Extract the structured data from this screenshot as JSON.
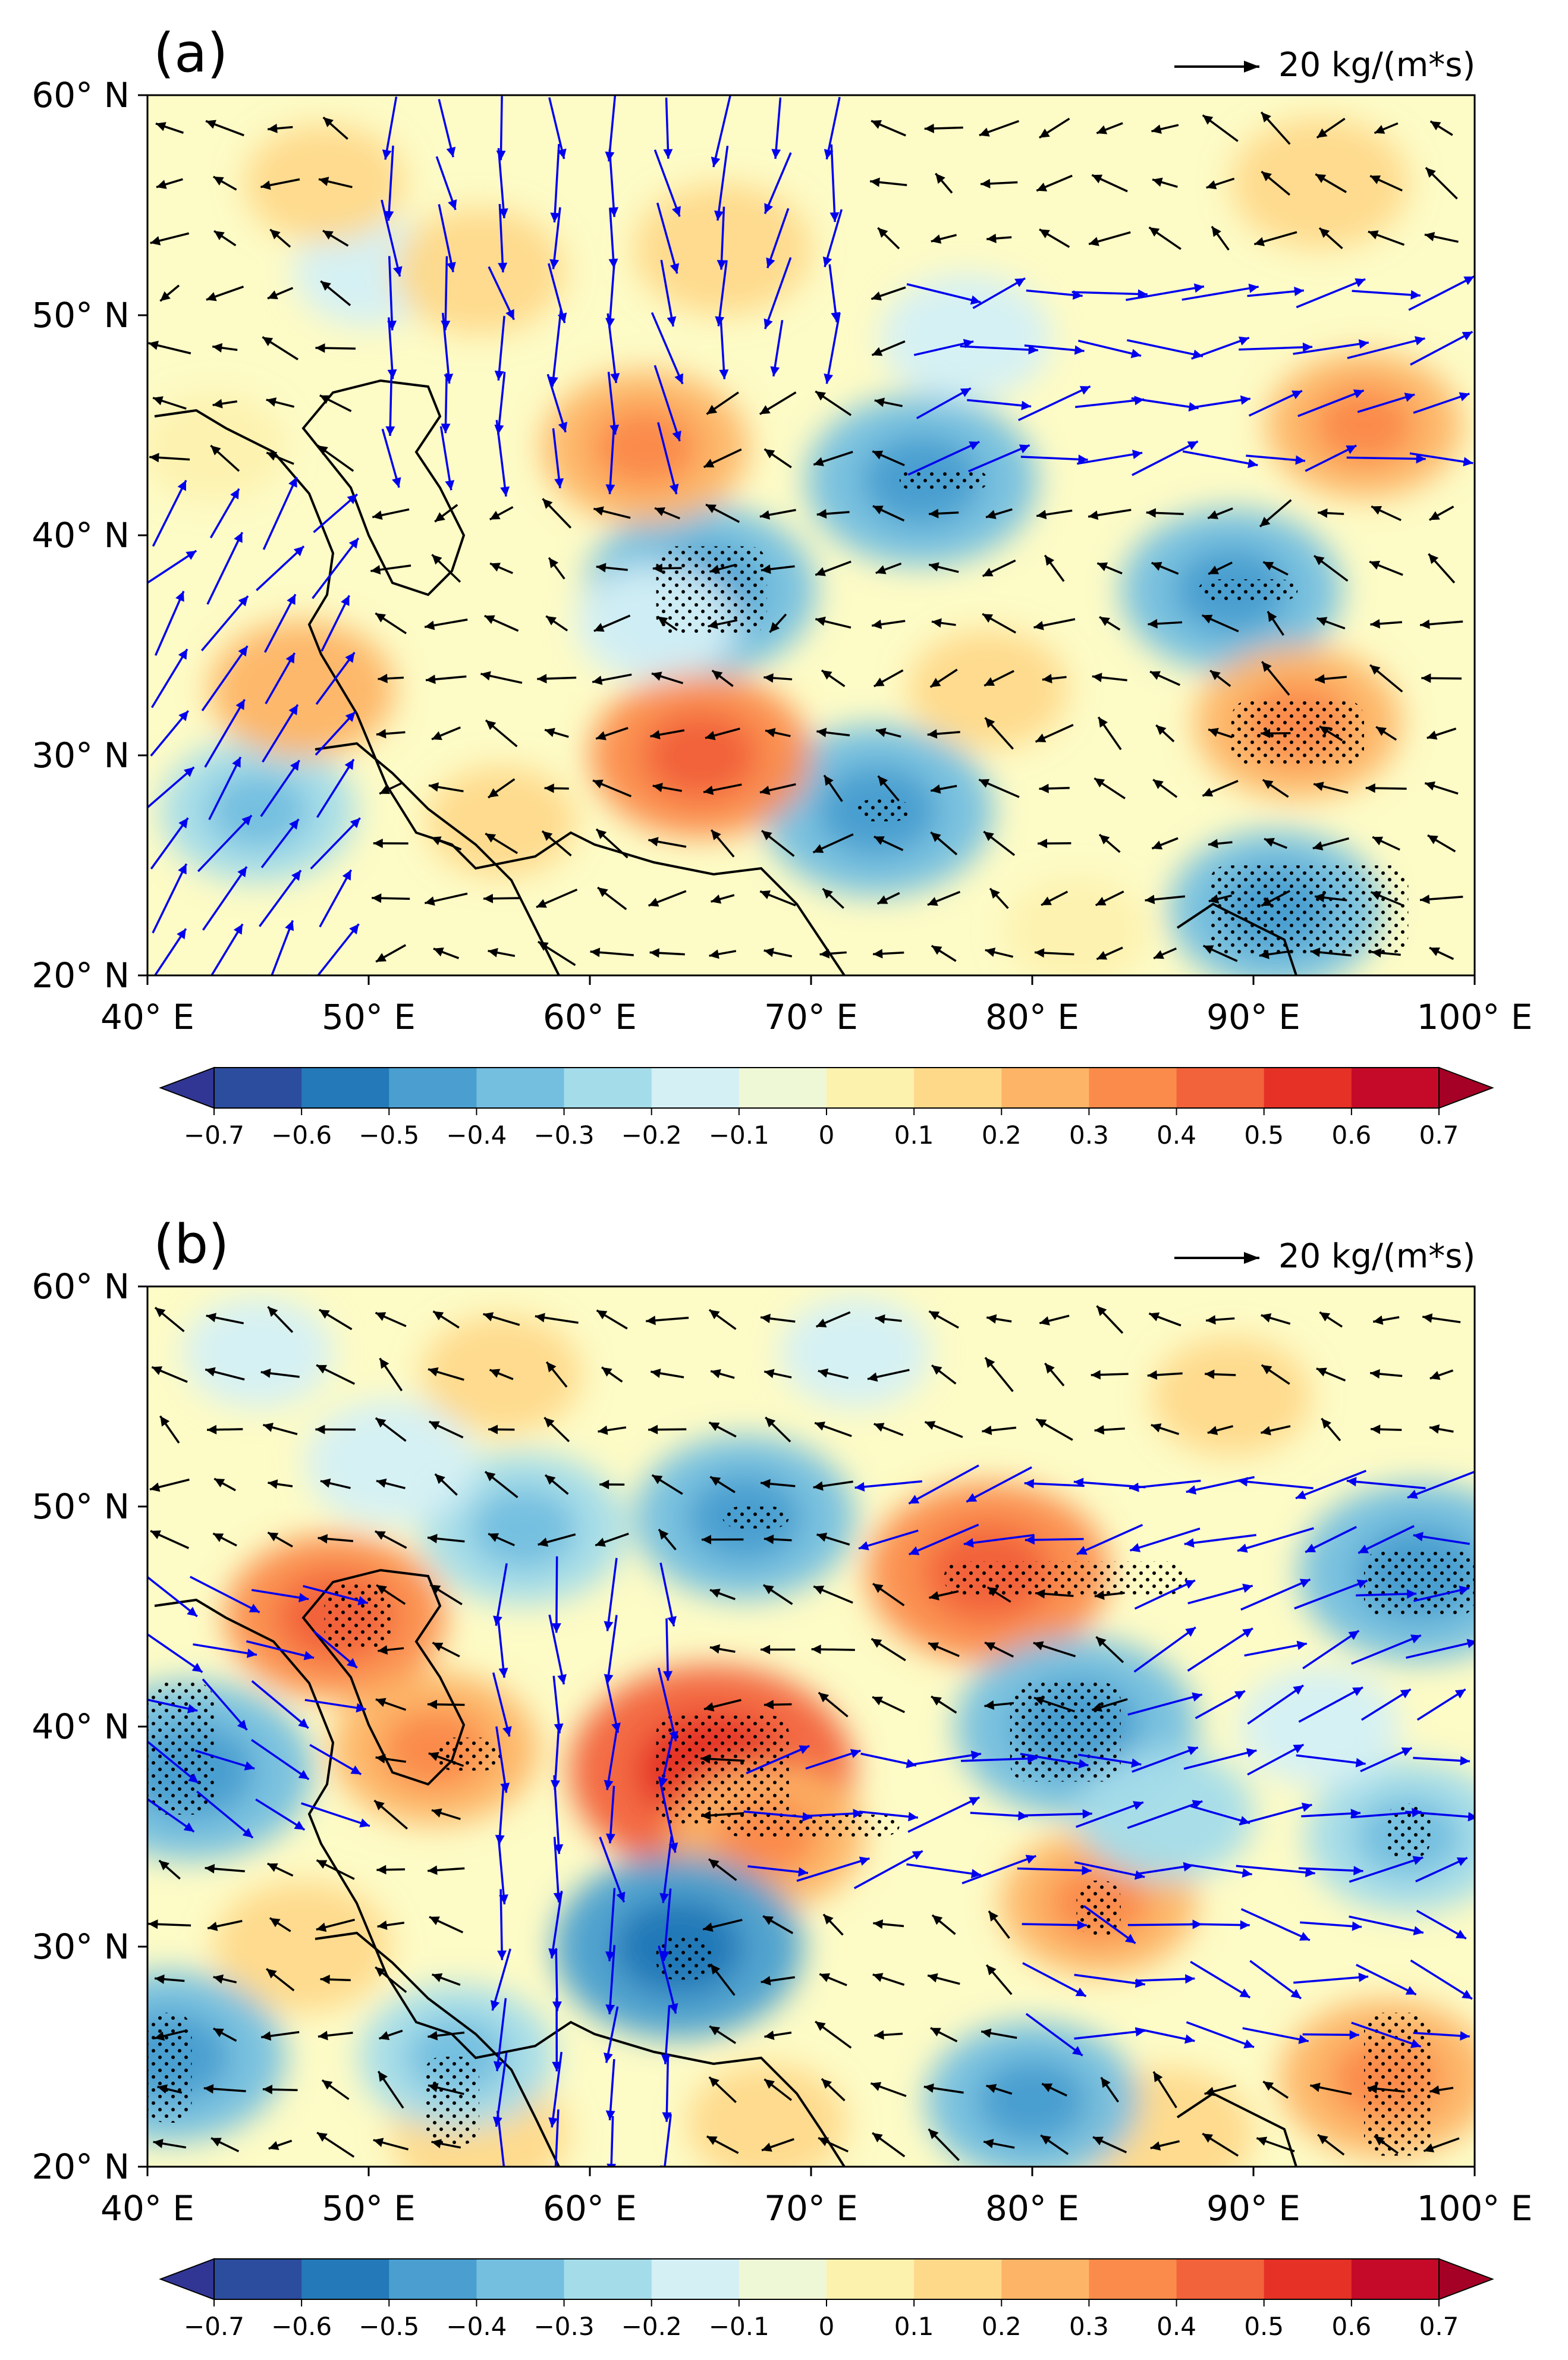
{
  "chart_data": [
    {
      "type": "heatmap",
      "panel_label": "(a)",
      "reference_vector_label": "20 kg/(m*s)",
      "xlim": [
        40,
        100
      ],
      "ylim": [
        20,
        60
      ],
      "x_ticks": [
        40,
        50,
        60,
        70,
        80,
        90,
        100
      ],
      "x_tick_labels": [
        "40° E",
        "50° E",
        "60° E",
        "70° E",
        "80° E",
        "90° E",
        "100° E"
      ],
      "y_ticks": [
        20,
        30,
        40,
        50,
        60
      ],
      "y_tick_labels": [
        "20° N",
        "30° N",
        "40° N",
        "50° N",
        "60° N"
      ],
      "colorbar_ticks": [
        "−0.7",
        "−0.6",
        "−0.5",
        "−0.4",
        "−0.3",
        "−0.2",
        "−0.1",
        "0",
        "0.1",
        "0.2",
        "0.3",
        "0.4",
        "0.5",
        "0.6",
        "0.7"
      ],
      "anomalies": [
        {
          "lon": 65,
          "lat": 37.5,
          "value": -0.35
        },
        {
          "lon": 75,
          "lat": 42.5,
          "value": -0.35
        },
        {
          "lon": 73,
          "lat": 27.5,
          "value": -0.35
        },
        {
          "lon": 89,
          "lat": 37.5,
          "value": -0.32
        },
        {
          "lon": 91,
          "lat": 23,
          "value": -0.3
        },
        {
          "lon": 63,
          "lat": 36,
          "value": -0.15
        },
        {
          "lon": 45,
          "lat": 27.5,
          "value": -0.25
        },
        {
          "lon": 77,
          "lat": 49,
          "value": -0.18
        },
        {
          "lon": 50,
          "lat": 52,
          "value": -0.12
        },
        {
          "lon": 62.5,
          "lat": 44,
          "value": 0.28
        },
        {
          "lon": 65,
          "lat": 30,
          "value": 0.32
        },
        {
          "lon": 92,
          "lat": 31.5,
          "value": 0.28
        },
        {
          "lon": 95,
          "lat": 45,
          "value": 0.25
        },
        {
          "lon": 55,
          "lat": 52,
          "value": 0.18
        },
        {
          "lon": 66,
          "lat": 53,
          "value": 0.2
        },
        {
          "lon": 93,
          "lat": 56,
          "value": 0.2
        },
        {
          "lon": 47,
          "lat": 33,
          "value": 0.22
        },
        {
          "lon": 48,
          "lat": 56,
          "value": 0.15
        },
        {
          "lon": 78,
          "lat": 33,
          "value": 0.15
        },
        {
          "lon": 43,
          "lat": 44,
          "value": 0.1
        },
        {
          "lon": 56,
          "lat": 27,
          "value": 0.12
        },
        {
          "lon": 82,
          "lat": 22,
          "value": 0.1
        }
      ],
      "stippling": [
        {
          "lon_range": [
            63,
            68
          ],
          "lat_range": [
            35.5,
            39.5
          ]
        },
        {
          "lon_range": [
            74,
            78
          ],
          "lat_range": [
            42,
            43
          ]
        },
        {
          "lon_range": [
            72,
            74.5
          ],
          "lat_range": [
            27,
            28
          ]
        },
        {
          "lon_range": [
            87.5,
            92
          ],
          "lat_range": [
            37,
            38
          ]
        },
        {
          "lon_range": [
            89,
            95
          ],
          "lat_range": [
            29.5,
            32.5
          ]
        },
        {
          "lon_range": [
            88,
            97
          ],
          "lat_range": [
            21,
            25
          ]
        }
      ],
      "vector_field_regions": [
        {
          "lon_range": [
            40,
            50
          ],
          "lat_range": [
            20,
            43
          ],
          "u": 0.7,
          "v": 1,
          "highlight": true
        },
        {
          "lon_range": [
            50,
            64
          ],
          "lat_range": [
            42,
            60
          ],
          "u": 0.1,
          "v": -1,
          "highlight": true
        },
        {
          "lon_range": [
            64,
            72
          ],
          "lat_range": [
            47,
            60
          ],
          "u": -0.1,
          "v": -1,
          "highlight": true
        },
        {
          "lon_range": [
            75,
            100
          ],
          "lat_range": [
            43,
            51
          ],
          "u": 1,
          "v": 0.15,
          "highlight": true
        },
        {
          "lon_range": [
            40,
            100
          ],
          "lat_range": [
            20,
            60
          ],
          "u": -0.5,
          "v": 0.1,
          "highlight": false
        }
      ]
    },
    {
      "type": "heatmap",
      "panel_label": "(b)",
      "reference_vector_label": "20 kg/(m*s)",
      "xlim": [
        40,
        100
      ],
      "ylim": [
        20,
        60
      ],
      "x_ticks": [
        40,
        50,
        60,
        70,
        80,
        90,
        100
      ],
      "x_tick_labels": [
        "40° E",
        "50° E",
        "60° E",
        "70° E",
        "80° E",
        "90° E",
        "100° E"
      ],
      "y_ticks": [
        20,
        30,
        40,
        50,
        60
      ],
      "y_tick_labels": [
        "20° N",
        "30° N",
        "40° N",
        "50° N",
        "60° N"
      ],
      "colorbar_ticks": [
        "−0.7",
        "−0.6",
        "−0.5",
        "−0.4",
        "−0.3",
        "−0.2",
        "−0.1",
        "0",
        "0.1",
        "0.2",
        "0.3",
        "0.4",
        "0.5",
        "0.6",
        "0.7"
      ],
      "anomalies": [
        {
          "lon": 65.5,
          "lat": 38,
          "value": 0.5
        },
        {
          "lon": 78,
          "lat": 47,
          "value": 0.38
        },
        {
          "lon": 48.5,
          "lat": 45,
          "value": 0.32
        },
        {
          "lon": 53,
          "lat": 39,
          "value": 0.28
        },
        {
          "lon": 68,
          "lat": 35,
          "value": 0.25
        },
        {
          "lon": 83,
          "lat": 32,
          "value": 0.25
        },
        {
          "lon": 96,
          "lat": 24,
          "value": 0.3
        },
        {
          "lon": 86,
          "lat": 21.5,
          "value": 0.2
        },
        {
          "lon": 55,
          "lat": 21.5,
          "value": 0.2
        },
        {
          "lon": 47,
          "lat": 30,
          "value": 0.2
        },
        {
          "lon": 56,
          "lat": 56,
          "value": 0.15
        },
        {
          "lon": 89,
          "lat": 55,
          "value": 0.15
        },
        {
          "lon": 68,
          "lat": 22,
          "value": 0.15
        },
        {
          "lon": 42,
          "lat": 38,
          "value": -0.38
        },
        {
          "lon": 67,
          "lat": 49.5,
          "value": -0.32
        },
        {
          "lon": 82,
          "lat": 40,
          "value": -0.38
        },
        {
          "lon": 97.5,
          "lat": 47,
          "value": -0.38
        },
        {
          "lon": 64,
          "lat": 30,
          "value": -0.4
        },
        {
          "lon": 80,
          "lat": 23,
          "value": -0.3
        },
        {
          "lon": 41,
          "lat": 25,
          "value": -0.35
        },
        {
          "lon": 54,
          "lat": 25,
          "value": -0.25
        },
        {
          "lon": 97,
          "lat": 35,
          "value": -0.28
        },
        {
          "lon": 57,
          "lat": 49,
          "value": -0.28
        },
        {
          "lon": 51,
          "lat": 52,
          "value": -0.18
        },
        {
          "lon": 45,
          "lat": 57,
          "value": -0.12
        },
        {
          "lon": 72,
          "lat": 57,
          "value": -0.12
        },
        {
          "lon": 86,
          "lat": 36,
          "value": -0.2
        },
        {
          "lon": 93,
          "lat": 40,
          "value": -0.15
        }
      ],
      "stippling": [
        {
          "lon_range": [
            63,
            69
          ],
          "lat_range": [
            35.5,
            40.5
          ]
        },
        {
          "lon_range": [
            76,
            87
          ],
          "lat_range": [
            46,
            47.5
          ]
        },
        {
          "lon_range": [
            48,
            51
          ],
          "lat_range": [
            43.5,
            46.5
          ]
        },
        {
          "lon_range": [
            53,
            56
          ],
          "lat_range": [
            38,
            39.5
          ]
        },
        {
          "lon_range": [
            40,
            43
          ],
          "lat_range": [
            36,
            42
          ]
        },
        {
          "lon_range": [
            66,
            69
          ],
          "lat_range": [
            49,
            50
          ]
        },
        {
          "lon_range": [
            79,
            84
          ],
          "lat_range": [
            37.5,
            42
          ]
        },
        {
          "lon_range": [
            95,
            100
          ],
          "lat_range": [
            45,
            48
          ]
        },
        {
          "lon_range": [
            63,
            65.5
          ],
          "lat_range": [
            28.5,
            30.5
          ]
        },
        {
          "lon_range": [
            40,
            42
          ],
          "lat_range": [
            22,
            27
          ]
        },
        {
          "lon_range": [
            52.5,
            55
          ],
          "lat_range": [
            21,
            25
          ]
        },
        {
          "lon_range": [
            95,
            98
          ],
          "lat_range": [
            20.5,
            27
          ]
        },
        {
          "lon_range": [
            96,
            98
          ],
          "lat_range": [
            34,
            36.5
          ]
        },
        {
          "lon_range": [
            82,
            84
          ],
          "lat_range": [
            30.5,
            33
          ]
        },
        {
          "lon_range": [
            66,
            74
          ],
          "lat_range": [
            35,
            36
          ]
        }
      ],
      "vector_field_regions": [
        {
          "lon_range": [
            40,
            50
          ],
          "lat_range": [
            34,
            46
          ],
          "u": 1,
          "v": -0.5,
          "highlight": true
        },
        {
          "lon_range": [
            54,
            65
          ],
          "lat_range": [
            20,
            46
          ],
          "u": 0,
          "v": -1,
          "highlight": true
        },
        {
          "lon_range": [
            68,
            100
          ],
          "lat_range": [
            33,
            40
          ],
          "u": 1,
          "v": 0.15,
          "highlight": true
        },
        {
          "lon_range": [
            79,
            100
          ],
          "lat_range": [
            26,
            32
          ],
          "u": 1,
          "v": -0.3,
          "highlight": true
        },
        {
          "lon_range": [
            72,
            100
          ],
          "lat_range": [
            48,
            53
          ],
          "u": -1,
          "v": -0.2,
          "highlight": true
        },
        {
          "lon_range": [
            85,
            100
          ],
          "lat_range": [
            40,
            50
          ],
          "u": 1,
          "v": 0.4,
          "highlight": true
        },
        {
          "lon_range": [
            40,
            100
          ],
          "lat_range": [
            20,
            60
          ],
          "u": -0.6,
          "v": 0.2,
          "highlight": false
        }
      ]
    }
  ]
}
